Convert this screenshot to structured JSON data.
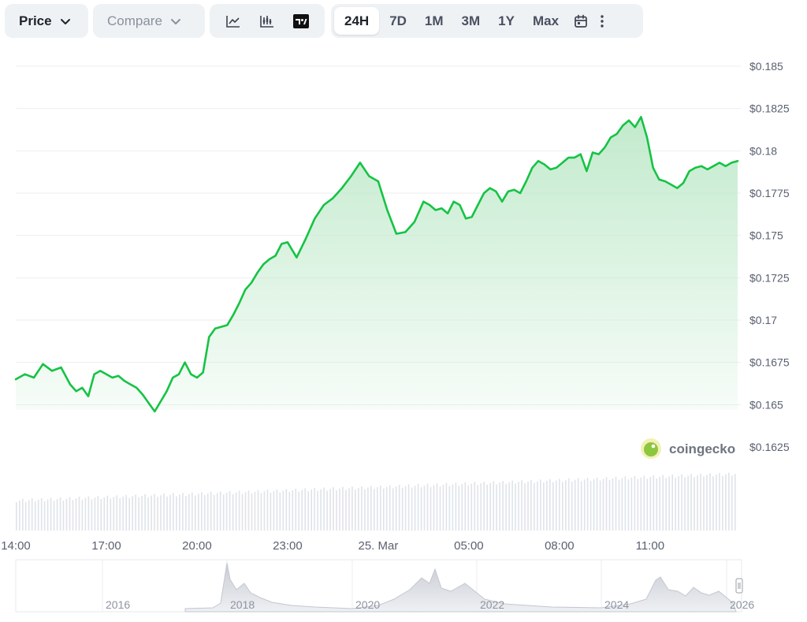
{
  "toolbar": {
    "price_label": "Price",
    "compare_label": "Compare",
    "chart_types": [
      "line-chart-icon",
      "candlestick-chart-icon",
      "tradingview-icon"
    ],
    "ranges": [
      "24H",
      "7D",
      "1M",
      "3M",
      "1Y",
      "Max"
    ],
    "active_range": "24H",
    "extra_icons": [
      "calendar-icon",
      "more-vertical-icon"
    ]
  },
  "brand": {
    "name": "coingecko"
  },
  "colors": {
    "line": "#16c344",
    "fill_top": "#c6ecd1",
    "grid": "#eceef2",
    "volume": "#dfe3e8",
    "nav": "#d7dae0"
  },
  "chart_data": {
    "type": "area",
    "ylim": [
      0.1625,
      0.185
    ],
    "y_ticks": [
      "$0.185",
      "$0.1825",
      "$0.18",
      "$0.1775",
      "$0.175",
      "$0.1725",
      "$0.17",
      "$0.1675",
      "$0.165",
      "$0.1625"
    ],
    "x_ticks": [
      "14:00",
      "17:00",
      "20:00",
      "23:00",
      "25. Mar",
      "05:00",
      "08:00",
      "11:00"
    ],
    "x_hours": [
      0,
      3,
      6,
      9,
      12,
      15,
      18,
      21
    ],
    "x_range_hours": [
      0,
      23.9
    ],
    "grid": true,
    "series": [
      {
        "x": [
          0,
          0.3,
          0.6,
          0.9,
          1.2,
          1.5,
          1.8,
          2.0,
          2.2,
          2.4,
          2.6,
          2.8,
          3.0,
          3.2,
          3.4,
          3.6,
          3.8,
          4.0,
          4.2,
          4.4,
          4.6,
          4.8,
          5.0,
          5.2,
          5.4,
          5.6,
          5.8,
          6.0,
          6.2,
          6.4,
          6.6,
          6.8,
          7.0,
          7.2,
          7.4,
          7.6,
          7.8,
          8.0,
          8.2,
          8.4,
          8.6,
          8.8,
          9.0,
          9.3,
          9.6,
          9.9,
          10.2,
          10.5,
          10.8,
          11.1,
          11.4,
          11.7,
          12.0,
          12.3,
          12.6,
          12.9,
          13.2,
          13.5,
          13.7,
          13.9,
          14.1,
          14.3,
          14.5,
          14.7,
          14.9,
          15.1,
          15.3,
          15.5,
          15.7,
          15.9,
          16.1,
          16.3,
          16.5,
          16.7,
          16.9,
          17.1,
          17.3,
          17.5,
          17.7,
          17.9,
          18.1,
          18.3,
          18.5,
          18.7,
          18.9,
          19.1,
          19.3,
          19.5,
          19.7,
          19.9,
          20.1,
          20.3,
          20.5,
          20.7,
          20.9,
          21.1,
          21.3,
          21.5,
          21.7,
          21.9,
          22.1,
          22.3,
          22.5,
          22.7,
          22.9,
          23.1,
          23.3,
          23.5,
          23.7,
          23.9
        ],
        "y": [
          0.1665,
          0.1668,
          0.1666,
          0.1674,
          0.167,
          0.1672,
          0.1662,
          0.1658,
          0.166,
          0.1655,
          0.1668,
          0.167,
          0.1668,
          0.1666,
          0.1667,
          0.1664,
          0.1662,
          0.166,
          0.1656,
          0.1651,
          0.1646,
          0.1652,
          0.1658,
          0.1666,
          0.1668,
          0.1675,
          0.1668,
          0.1666,
          0.1669,
          0.169,
          0.1695,
          0.1696,
          0.1697,
          0.1703,
          0.171,
          0.1718,
          0.1722,
          0.1728,
          0.1733,
          0.1736,
          0.1738,
          0.1745,
          0.1746,
          0.1737,
          0.1748,
          0.176,
          0.1768,
          0.1772,
          0.1778,
          0.1785,
          0.1793,
          0.1785,
          0.1782,
          0.1765,
          0.1751,
          0.1752,
          0.1758,
          0.177,
          0.1768,
          0.1765,
          0.1766,
          0.1763,
          0.177,
          0.1768,
          0.176,
          0.1761,
          0.1768,
          0.1775,
          0.1778,
          0.1776,
          0.177,
          0.1776,
          0.1777,
          0.1775,
          0.1782,
          0.179,
          0.1794,
          0.1792,
          0.1789,
          0.179,
          0.1793,
          0.1796,
          0.1796,
          0.1798,
          0.1788,
          0.1799,
          0.1798,
          0.1802,
          0.1808,
          0.181,
          0.1815,
          0.1818,
          0.1814,
          0.182,
          0.1808,
          0.179,
          0.1783,
          0.1782,
          0.178,
          0.1778,
          0.1781,
          0.1788,
          0.179,
          0.1791,
          0.1789,
          0.1791,
          0.1793,
          0.1791,
          0.1793,
          0.1794
        ]
      }
    ],
    "navigator": {
      "x_ticks": [
        "2016",
        "2018",
        "2020",
        "2022",
        "2024",
        "2026"
      ]
    }
  }
}
